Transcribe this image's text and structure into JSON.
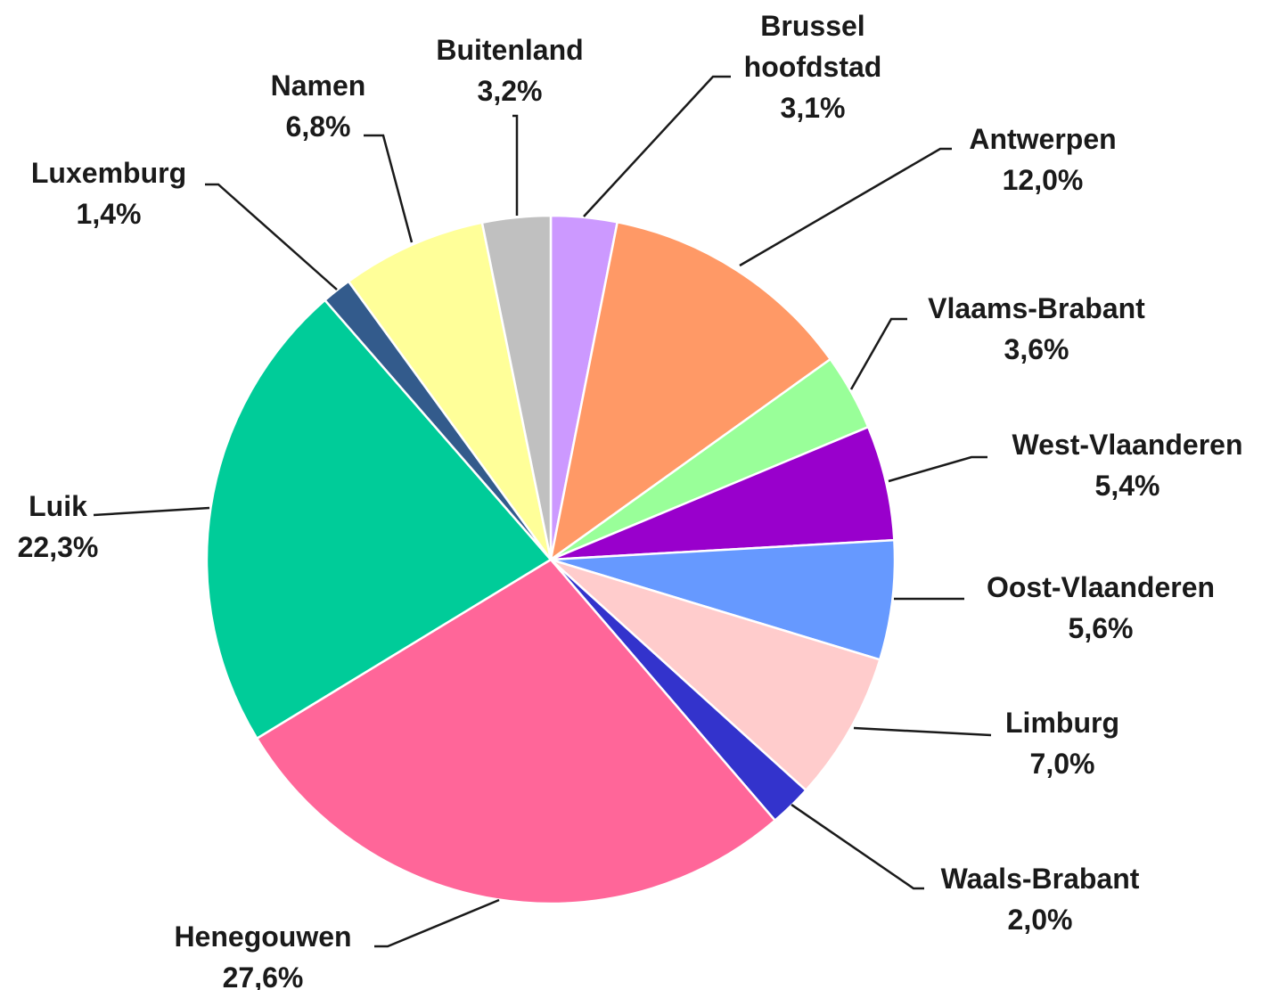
{
  "chart_data": {
    "type": "pie",
    "categories": [
      "Brussel hoofdstad",
      "Antwerpen",
      "Vlaams-Brabant",
      "West-Vlaanderen",
      "Oost-Vlaanderen",
      "Limburg",
      "Waals-Brabant",
      "Henegouwen",
      "Luik",
      "Luxemburg",
      "Namen",
      "Buitenland"
    ],
    "values": [
      3.1,
      12.0,
      3.6,
      5.4,
      5.6,
      7.0,
      2.0,
      27.6,
      22.3,
      1.4,
      6.8,
      3.2
    ],
    "value_labels": [
      "3,1%",
      "12,0%",
      "3,6%",
      "5,4%",
      "5,6%",
      "7,0%",
      "2,0%",
      "27,6%",
      "22,3%",
      "1,4%",
      "6,8%",
      "3,2%"
    ],
    "colors": [
      "#cc99ff",
      "#ff9966",
      "#99ff99",
      "#9900cc",
      "#6699ff",
      "#ffcccc",
      "#3333cc",
      "#ff6699",
      "#00cc99",
      "#335b8c",
      "#ffff99",
      "#c0c0c0"
    ]
  }
}
